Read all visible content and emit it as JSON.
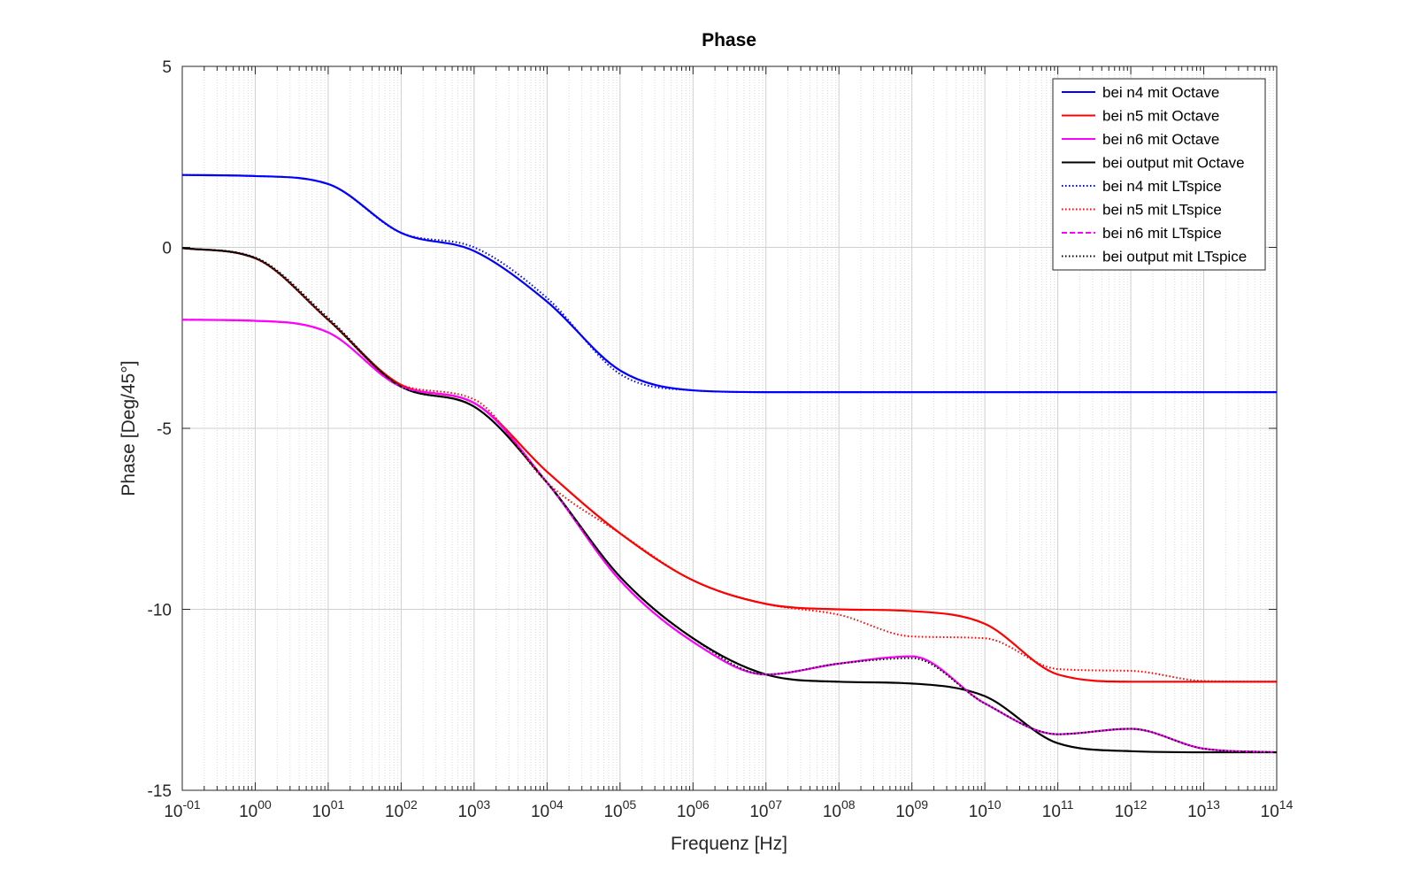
{
  "chart_data": {
    "type": "line",
    "title": "Phase",
    "xlabel": "Frequenz [Hz]",
    "ylabel": "Phase [Deg/45°]",
    "xscale": "log",
    "xlim": [
      0.1,
      100000000000000.0
    ],
    "ylim": [
      -15,
      5
    ],
    "grid": true,
    "legend_position": "top-right",
    "x_ticks": [
      {
        "base": "10",
        "exp": "-01"
      },
      {
        "base": "10",
        "exp": "00"
      },
      {
        "base": "10",
        "exp": "01"
      },
      {
        "base": "10",
        "exp": "02"
      },
      {
        "base": "10",
        "exp": "03"
      },
      {
        "base": "10",
        "exp": "04"
      },
      {
        "base": "10",
        "exp": "05"
      },
      {
        "base": "10",
        "exp": "06"
      },
      {
        "base": "10",
        "exp": "07"
      },
      {
        "base": "10",
        "exp": "08"
      },
      {
        "base": "10",
        "exp": "09"
      },
      {
        "base": "10",
        "exp": "10"
      },
      {
        "base": "10",
        "exp": "11"
      },
      {
        "base": "10",
        "exp": "12"
      },
      {
        "base": "10",
        "exp": "13"
      },
      {
        "base": "10",
        "exp": "14"
      }
    ],
    "y_ticks": [
      "5",
      "0",
      "-5",
      "-10",
      "-15"
    ],
    "y_tick_values": [
      5,
      0,
      -5,
      -10,
      -15
    ],
    "x": [
      0.1,
      1,
      10,
      100,
      1000,
      10000,
      100000,
      1000000,
      10000000,
      100000000,
      1000000000,
      10000000000,
      100000000000,
      1000000000000,
      10000000000000,
      100000000000000
    ],
    "series": [
      {
        "name": "bei n4 mit Octave",
        "color": "#0000ff",
        "style": "solid",
        "values": [
          2.0,
          1.97,
          1.75,
          0.4,
          -0.1,
          -1.5,
          -3.4,
          -3.95,
          -4.0,
          -4.0,
          -4.0,
          -4.0,
          -4.0,
          -4.0,
          -4.0,
          -4.0
        ]
      },
      {
        "name": "bei n5 mit Octave",
        "color": "#ff0000",
        "style": "solid",
        "values": [
          -0.02,
          -0.3,
          -2.0,
          -3.8,
          -4.3,
          -6.2,
          -7.9,
          -9.2,
          -9.85,
          -10.0,
          -10.05,
          -10.4,
          -11.8,
          -12.0,
          -12.0,
          -12.0
        ]
      },
      {
        "name": "bei n6 mit Octave",
        "color": "#ff00ff",
        "style": "solid",
        "values": [
          -2.0,
          -2.03,
          -2.35,
          -3.85,
          -4.3,
          -6.5,
          -9.2,
          -10.9,
          -11.8,
          -11.5,
          -11.3,
          -12.6,
          -13.45,
          -13.3,
          -13.85,
          -13.95
        ]
      },
      {
        "name": "bei output mit Octave",
        "color": "#000000",
        "style": "solid",
        "values": [
          -0.02,
          -0.3,
          -2.0,
          -3.85,
          -4.4,
          -6.5,
          -9.1,
          -10.8,
          -11.8,
          -12.0,
          -12.05,
          -12.4,
          -13.7,
          -13.92,
          -13.95,
          -13.95
        ]
      },
      {
        "name": "bei n4 mit LTspice",
        "color": "#0000ff",
        "style": "dotted",
        "values": [
          2.0,
          1.97,
          1.75,
          0.4,
          0.0,
          -1.4,
          -3.5,
          -3.95,
          -4.0,
          -4.0,
          -4.0,
          -4.0,
          -4.0,
          -4.0,
          -4.0,
          -4.0
        ]
      },
      {
        "name": "bei n5 mit LTspice",
        "color": "#ff0000",
        "style": "dotted",
        "values": [
          -0.02,
          -0.3,
          -2.0,
          -3.8,
          -4.2,
          -6.5,
          -7.9,
          -9.2,
          -9.85,
          -10.15,
          -10.75,
          -10.8,
          -11.65,
          -11.7,
          -11.98,
          -12.0
        ]
      },
      {
        "name": "bei n6 mit LTspice",
        "color": "#ff00ff",
        "style": "dashed",
        "values": [
          -2.0,
          -2.03,
          -2.35,
          -3.85,
          -4.3,
          -6.5,
          -9.2,
          -10.9,
          -11.8,
          -11.5,
          -11.3,
          -12.6,
          -13.45,
          -13.3,
          -13.85,
          -13.95
        ]
      },
      {
        "name": "bei output mit LTspice",
        "color": "#000000",
        "style": "dotted",
        "values": [
          -0.02,
          -0.28,
          -1.95,
          -3.85,
          -4.4,
          -6.5,
          -9.1,
          -10.8,
          -11.8,
          -11.5,
          -11.35,
          -12.6,
          -13.45,
          -13.3,
          -13.85,
          -13.95
        ]
      }
    ]
  }
}
